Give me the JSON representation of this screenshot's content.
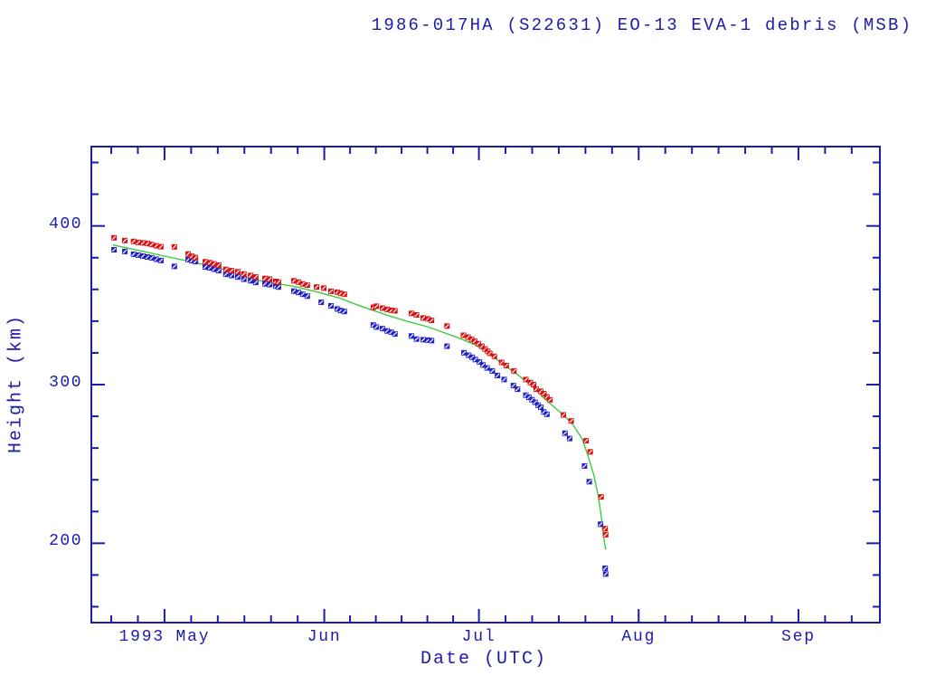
{
  "colors": {
    "background": "#ffffff",
    "axis": "#1c1caa",
    "text": "#1c1caa",
    "red_marker": "#dd1111",
    "blue_marker": "#2222cc",
    "green_line": "#3ecc3e"
  },
  "chart_data": {
    "type": "scatter",
    "title": "1986-017HA (S22631) EO-13 EVA-1 debris (MSB)",
    "xlabel": "Date (UTC)",
    "ylabel": "Height (km)",
    "grid": false,
    "legend": "none",
    "x_axis": {
      "unit": "days relative to 1993-05-01 00:00 UTC",
      "range": [
        -14.2,
        138.8
      ],
      "month_ticks": [
        {
          "day": 0,
          "label": "1993 May"
        },
        {
          "day": 31,
          "label": "Jun"
        },
        {
          "day": 61,
          "label": "Jul"
        },
        {
          "day": 92,
          "label": "Aug"
        },
        {
          "day": 123,
          "label": "Sep"
        }
      ],
      "minor_divisions_per_month": 6
    },
    "y_axis": {
      "range": [
        150,
        450
      ],
      "major_ticks": [
        200,
        300,
        400
      ],
      "minor_step": 20
    },
    "series": [
      {
        "name": "red-squares-upper-height",
        "marker": "square-slash",
        "color": "#dd1111",
        "points": [
          [
            -9.8,
            392.5
          ],
          [
            -7.7,
            390.8
          ],
          [
            -6,
            390.2
          ],
          [
            -5.1,
            389.6
          ],
          [
            -4.2,
            389.3
          ],
          [
            -3.3,
            388.9
          ],
          [
            -2.5,
            388.3
          ],
          [
            -1.6,
            387.5
          ],
          [
            -0.7,
            386.9
          ],
          [
            1.9,
            386.8
          ],
          [
            4.6,
            382.3
          ],
          [
            5.3,
            380.9
          ],
          [
            6,
            380
          ],
          [
            7.9,
            377.4
          ],
          [
            8.8,
            376.8
          ],
          [
            9.6,
            376.1
          ],
          [
            10.5,
            375.3
          ],
          [
            11.9,
            372.6
          ],
          [
            13,
            371.8
          ],
          [
            14.2,
            371.1
          ],
          [
            15.4,
            369.7
          ],
          [
            16.7,
            368.8
          ],
          [
            17.7,
            367.8
          ],
          [
            19.5,
            366.9
          ],
          [
            20.4,
            366.5
          ],
          [
            21.6,
            365
          ],
          [
            22.1,
            364.6
          ],
          [
            25.1,
            365.4
          ],
          [
            26,
            364.6
          ],
          [
            26.8,
            363.4
          ],
          [
            27.7,
            362.7
          ],
          [
            29.5,
            361.5
          ],
          [
            30.9,
            360.8
          ],
          [
            32.3,
            358.8
          ],
          [
            33.5,
            358.3
          ],
          [
            34.2,
            357.5
          ],
          [
            34.9,
            356.9
          ],
          [
            40.5,
            348.7
          ],
          [
            41.1,
            349.4
          ],
          [
            42.3,
            348.2
          ],
          [
            43.2,
            347.4
          ],
          [
            44,
            346.8
          ],
          [
            44.7,
            346.5
          ],
          [
            47.9,
            344.9
          ],
          [
            48.9,
            343.9
          ],
          [
            50.2,
            342
          ],
          [
            51.1,
            341.4
          ],
          [
            51.8,
            340.5
          ],
          [
            54.8,
            336.9
          ],
          [
            58,
            331.1
          ],
          [
            58.9,
            329.9
          ],
          [
            59.6,
            328.6
          ],
          [
            60.2,
            327.3
          ],
          [
            60.9,
            325.8
          ],
          [
            61.6,
            324.2
          ],
          [
            62.2,
            322.4
          ],
          [
            62.7,
            321
          ],
          [
            63.1,
            319.7
          ],
          [
            64,
            317.8
          ],
          [
            65.4,
            314
          ],
          [
            66.3,
            312
          ],
          [
            67.8,
            308.6
          ],
          [
            70.1,
            303.2
          ],
          [
            71,
            301.3
          ],
          [
            71.6,
            300
          ],
          [
            72.1,
            297.1
          ],
          [
            73,
            295.8
          ],
          [
            73.6,
            294.3
          ],
          [
            74.2,
            292.3
          ],
          [
            74.8,
            290.4
          ],
          [
            77.4,
            280.9
          ],
          [
            78.9,
            277.1
          ],
          [
            81.8,
            264.6
          ],
          [
            82.6,
            257.6
          ],
          [
            84.7,
            229.2
          ],
          [
            85.5,
            209.2
          ],
          [
            85.6,
            205.4
          ]
        ]
      },
      {
        "name": "blue-squares-lower-height",
        "marker": "square-slash",
        "color": "#2222cc",
        "points": [
          [
            -9.8,
            385
          ],
          [
            -7.7,
            383.9
          ],
          [
            -6,
            382.2
          ],
          [
            -5.1,
            381.6
          ],
          [
            -4.2,
            381
          ],
          [
            -3.3,
            380.4
          ],
          [
            -2.5,
            379.9
          ],
          [
            -1.6,
            379
          ],
          [
            -0.7,
            378.2
          ],
          [
            1.9,
            374.5
          ],
          [
            4.6,
            378.8
          ],
          [
            5.3,
            378.1
          ],
          [
            6,
            377.5
          ],
          [
            7.9,
            374.1
          ],
          [
            8.8,
            373.6
          ],
          [
            9.6,
            372.7
          ],
          [
            10.5,
            371.8
          ],
          [
            11.9,
            369.5
          ],
          [
            13,
            368.7
          ],
          [
            14.2,
            367.8
          ],
          [
            15.4,
            366.4
          ],
          [
            16.7,
            365.5
          ],
          [
            17.7,
            364.4
          ],
          [
            19.5,
            363.5
          ],
          [
            20.4,
            363
          ],
          [
            21.6,
            362.1
          ],
          [
            22.1,
            361.5
          ],
          [
            25.1,
            358.9
          ],
          [
            26,
            358.1
          ],
          [
            26.8,
            356.9
          ],
          [
            27.7,
            355.8
          ],
          [
            30.4,
            351.9
          ],
          [
            32.3,
            349.6
          ],
          [
            33.5,
            347.7
          ],
          [
            34.2,
            346.7
          ],
          [
            34.9,
            346.1
          ],
          [
            40.5,
            337.6
          ],
          [
            41.1,
            336.3
          ],
          [
            42.3,
            335.3
          ],
          [
            43.2,
            333.8
          ],
          [
            44,
            333
          ],
          [
            44.7,
            331.9
          ],
          [
            47.9,
            330.6
          ],
          [
            48.9,
            328.7
          ],
          [
            50.2,
            328.3
          ],
          [
            51.1,
            328
          ],
          [
            51.8,
            327.7
          ],
          [
            54.8,
            324.2
          ],
          [
            58.1,
            320.1
          ],
          [
            59,
            318.5
          ],
          [
            59.7,
            317.2
          ],
          [
            60.3,
            315.8
          ],
          [
            61.1,
            314.3
          ],
          [
            61.8,
            312.4
          ],
          [
            62.6,
            310.5
          ],
          [
            63.6,
            308.6
          ],
          [
            64.6,
            305.7
          ],
          [
            65.9,
            303.2
          ],
          [
            67.7,
            299.4
          ],
          [
            68.5,
            297.1
          ],
          [
            70.1,
            293.3
          ],
          [
            70.7,
            292
          ],
          [
            71.3,
            290.4
          ],
          [
            71.9,
            288.9
          ],
          [
            72.5,
            287
          ],
          [
            73,
            285.7
          ],
          [
            73.6,
            282.8
          ],
          [
            74.2,
            281.3
          ],
          [
            77.7,
            269.4
          ],
          [
            78.6,
            266
          ],
          [
            81.5,
            248.7
          ],
          [
            82.4,
            238.8
          ],
          [
            84.6,
            212
          ],
          [
            85.5,
            184.3
          ],
          [
            85.6,
            180.6
          ]
        ]
      },
      {
        "name": "green-mean-height-curve",
        "type": "line",
        "color": "#3ecc3e",
        "points": [
          [
            -10,
            388
          ],
          [
            -5,
            384.5
          ],
          [
            0,
            381
          ],
          [
            5,
            377.5
          ],
          [
            10,
            374
          ],
          [
            13,
            371
          ],
          [
            17,
            366.5
          ],
          [
            21,
            364
          ],
          [
            25,
            362
          ],
          [
            29.5,
            358.5
          ],
          [
            34,
            354.5
          ],
          [
            38,
            349.5
          ],
          [
            43,
            344
          ],
          [
            47,
            340
          ],
          [
            51,
            336.5
          ],
          [
            54,
            333
          ],
          [
            57,
            329.5
          ],
          [
            60,
            325.5
          ],
          [
            62,
            321.5
          ],
          [
            64,
            317
          ],
          [
            66,
            312
          ],
          [
            68,
            307.5
          ],
          [
            70,
            302.5
          ],
          [
            72,
            297
          ],
          [
            73.3,
            292.5
          ],
          [
            75,
            287.5
          ],
          [
            77,
            282
          ],
          [
            79.2,
            275
          ],
          [
            81,
            266
          ],
          [
            82.1,
            256
          ],
          [
            83.3,
            243
          ],
          [
            84.2,
            229
          ],
          [
            84.7,
            218
          ],
          [
            85.1,
            206
          ],
          [
            85.6,
            196
          ]
        ]
      }
    ]
  }
}
